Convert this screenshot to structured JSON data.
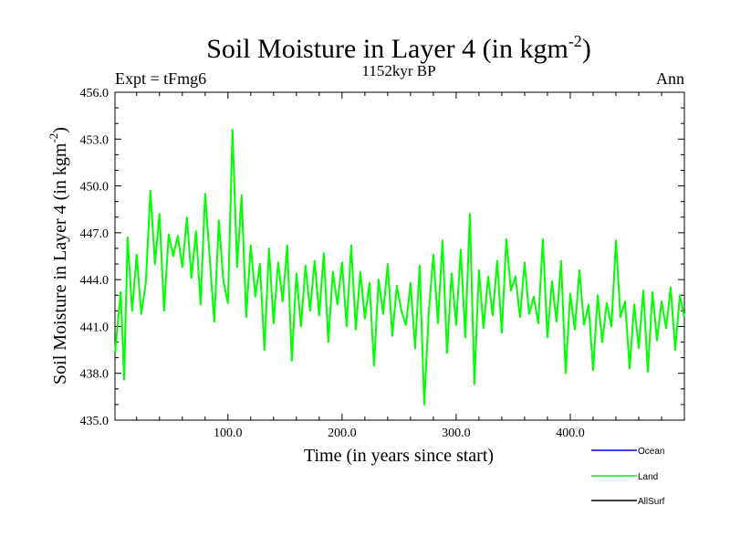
{
  "header": {
    "title_main": "Soil Moisture in Layer 4 (in kgm",
    "title_sup": "-2",
    "title_close": ")",
    "subtitle": "1152kyr BP",
    "left_label": "Expt = tFmg6",
    "right_label": "Ann"
  },
  "chart_data": {
    "type": "line",
    "title": "Soil Moisture in Layer 4 (in kgm-2)",
    "subtitle": "1152kyr BP",
    "xlabel": "Time (in years since start)",
    "ylabel_main": "Soil Moisture in Layer 4 (in kgm",
    "ylabel_sup": "-2",
    "ylabel_close": ")",
    "xlim": [
      1,
      500
    ],
    "ylim": [
      435.0,
      456.0
    ],
    "x_ticks": [
      100,
      200,
      300,
      400
    ],
    "x_tick_labels": [
      "100.0",
      "200.0",
      "300.0",
      "400.0"
    ],
    "y_ticks": [
      435,
      438,
      441,
      444,
      447,
      450,
      453,
      456
    ],
    "y_tick_labels": [
      "435.0",
      "438.0",
      "441.0",
      "444.0",
      "447.0",
      "450.0",
      "453.0",
      "456.0"
    ],
    "legend": [
      {
        "name": "Ocean",
        "color": "#0000ff"
      },
      {
        "name": "Land",
        "color": "#00ff00"
      },
      {
        "name": "AllSurf",
        "color": "#000000"
      }
    ],
    "series": [
      {
        "name": "Land",
        "color": "#00ff00",
        "x": [
          1,
          6,
          9,
          12,
          16,
          20,
          24,
          28,
          32,
          36,
          40,
          44,
          48,
          52,
          56,
          60,
          64,
          68,
          72,
          76,
          80,
          84,
          88,
          92,
          96,
          100,
          104,
          108,
          112,
          116,
          120,
          124,
          128,
          132,
          136,
          140,
          144,
          148,
          152,
          156,
          160,
          164,
          168,
          172,
          176,
          180,
          184,
          188,
          192,
          196,
          200,
          204,
          208,
          212,
          216,
          220,
          224,
          228,
          232,
          236,
          240,
          244,
          248,
          252,
          256,
          260,
          264,
          268,
          272,
          276,
          280,
          284,
          288,
          292,
          296,
          300,
          304,
          308,
          312,
          316,
          320,
          324,
          328,
          332,
          336,
          340,
          344,
          348,
          352,
          356,
          360,
          364,
          368,
          372,
          376,
          380,
          384,
          388,
          392,
          396,
          400,
          404,
          408,
          412,
          416,
          420,
          424,
          428,
          432,
          436,
          440,
          444,
          448,
          452,
          456,
          460,
          464,
          468,
          472,
          476,
          480,
          484,
          488,
          492,
          496,
          500
        ],
        "values": [
          439.3,
          443.2,
          437.6,
          446.7,
          442.0,
          445.6,
          441.8,
          443.8,
          449.7,
          445.0,
          448.2,
          442.0,
          446.9,
          445.5,
          446.8,
          444.8,
          448.0,
          444.1,
          447.1,
          442.4,
          449.5,
          445.4,
          441.3,
          447.8,
          443.9,
          442.5,
          453.6,
          444.8,
          449.4,
          441.6,
          446.2,
          442.9,
          445.0,
          439.5,
          446.0,
          441.2,
          445.1,
          442.6,
          446.2,
          438.8,
          444.4,
          441.0,
          444.9,
          442.0,
          445.2,
          441.7,
          445.7,
          440.0,
          444.5,
          442.4,
          445.1,
          441.0,
          446.2,
          440.8,
          444.5,
          441.5,
          443.8,
          438.5,
          444.0,
          441.8,
          445.0,
          440.4,
          443.6,
          442.0,
          441.1,
          443.8,
          439.6,
          444.9,
          436.0,
          441.9,
          445.6,
          441.2,
          446.5,
          439.3,
          444.4,
          441.1,
          445.9,
          440.3,
          448.2,
          437.3,
          444.6,
          440.9,
          444.2,
          441.7,
          445.2,
          440.6,
          446.6,
          443.3,
          444.2,
          441.6,
          445.1,
          441.8,
          442.9,
          441.2,
          446.6,
          440.3,
          443.9,
          441.3,
          445.2,
          438.0,
          443.1,
          440.8,
          444.6,
          441.1,
          442.4,
          438.2,
          443.0,
          440.0,
          442.5,
          441.0,
          446.5,
          441.6,
          442.6,
          438.3,
          442.4,
          439.6,
          443.3,
          438.1,
          443.2,
          440.1,
          442.6,
          440.9,
          443.5,
          439.5,
          443.0,
          441.6
        ]
      }
    ]
  }
}
